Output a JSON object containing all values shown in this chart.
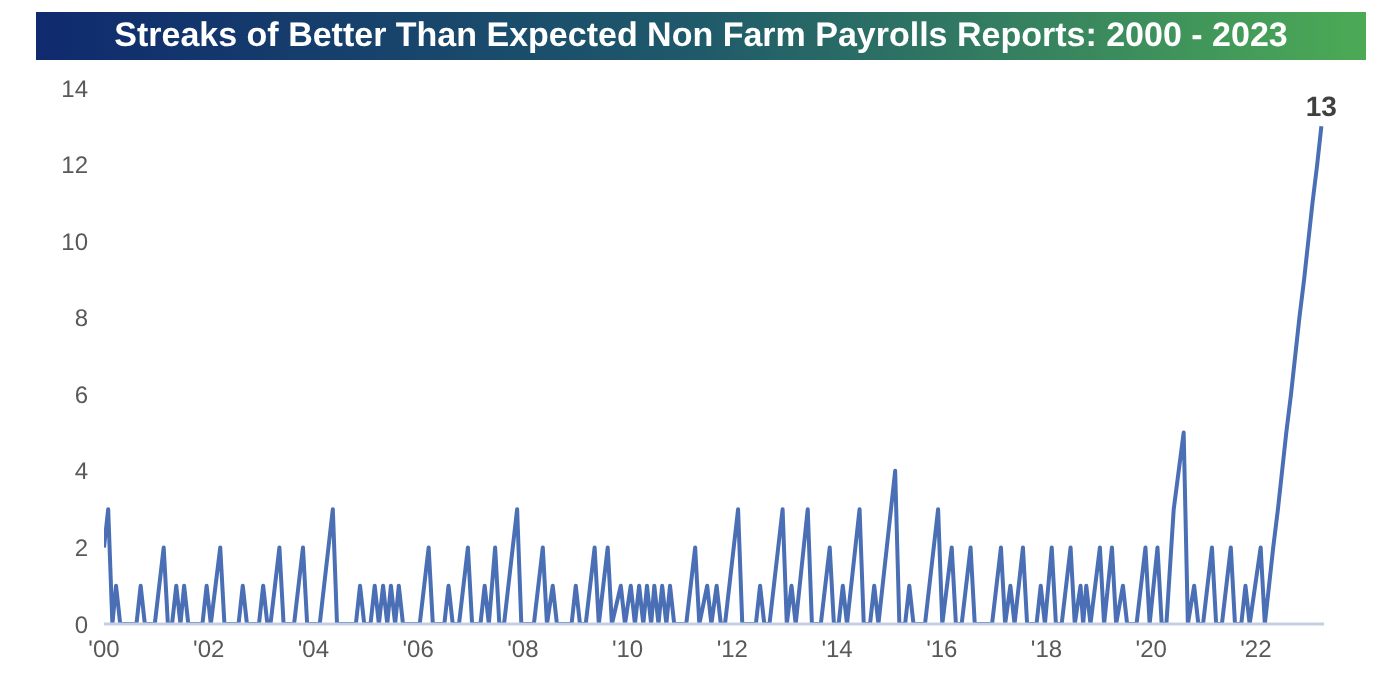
{
  "chart_data": {
    "type": "line",
    "title": "Streaks of Better Than Expected Non Farm Payrolls Reports: 2000 - 2023",
    "x": [
      2000.0,
      2000.08,
      2000.16,
      2000.23,
      2000.31,
      2000.62,
      2000.7,
      2000.78,
      2000.97,
      2001.14,
      2001.22,
      2001.3,
      2001.38,
      2001.46,
      2001.53,
      2001.61,
      2001.88,
      2001.96,
      2002.04,
      2002.22,
      2002.3,
      2002.57,
      2002.65,
      2002.73,
      2002.96,
      2003.04,
      2003.12,
      2003.18,
      2003.35,
      2003.43,
      2003.63,
      2003.8,
      2003.88,
      2004.12,
      2004.37,
      2004.45,
      2004.81,
      2004.89,
      2004.97,
      2005.09,
      2005.17,
      2005.25,
      2005.33,
      2005.41,
      2005.48,
      2005.56,
      2005.63,
      2005.71,
      2006.03,
      2006.2,
      2006.28,
      2006.5,
      2006.58,
      2006.66,
      2006.78,
      2006.95,
      2007.03,
      2007.19,
      2007.27,
      2007.35,
      2007.47,
      2007.55,
      2007.64,
      2007.89,
      2007.97,
      2008.21,
      2008.38,
      2008.46,
      2008.57,
      2008.65,
      2008.93,
      2009.01,
      2009.09,
      2009.2,
      2009.37,
      2009.45,
      2009.62,
      2009.7,
      2009.87,
      2009.95,
      2010.06,
      2010.14,
      2010.22,
      2010.3,
      2010.37,
      2010.45,
      2010.51,
      2010.59,
      2010.66,
      2010.74,
      2010.81,
      2010.89,
      2011.12,
      2011.29,
      2011.37,
      2011.52,
      2011.6,
      2011.7,
      2011.78,
      2011.86,
      2012.11,
      2012.19,
      2012.45,
      2012.53,
      2012.61,
      2012.71,
      2012.96,
      2013.04,
      2013.13,
      2013.21,
      2013.44,
      2013.52,
      2013.69,
      2013.86,
      2013.94,
      2014.03,
      2014.11,
      2014.19,
      2014.43,
      2014.51,
      2014.63,
      2014.71,
      2014.79,
      2015.11,
      2015.19,
      2015.3,
      2015.38,
      2015.46,
      2015.68,
      2015.93,
      2016.01,
      2016.19,
      2016.27,
      2016.38,
      2016.55,
      2016.63,
      2016.96,
      2017.13,
      2017.21,
      2017.31,
      2017.39,
      2017.55,
      2017.63,
      2017.81,
      2017.89,
      2017.97,
      2018.1,
      2018.18,
      2018.29,
      2018.46,
      2018.54,
      2018.65,
      2018.7,
      2018.76,
      2018.84,
      2019.02,
      2019.1,
      2019.25,
      2019.33,
      2019.46,
      2019.54,
      2019.72,
      2019.89,
      2019.97,
      2020.12,
      2020.2,
      2020.29,
      2020.43,
      2020.62,
      2020.7,
      2020.82,
      2020.9,
      2020.99,
      2021.16,
      2021.24,
      2021.35,
      2021.52,
      2021.6,
      2021.72,
      2021.8,
      2021.88,
      2022.09,
      2022.17,
      2022.25,
      2022.33,
      2022.42,
      2022.5,
      2022.58,
      2022.67,
      2022.75,
      2022.83,
      2022.92,
      2023.0,
      2023.08,
      2023.17,
      2023.25
    ],
    "series": [
      {
        "color": "#4a6fb5",
        "values": [
          2,
          3,
          0,
          1,
          0,
          0,
          1,
          0,
          0,
          2,
          0,
          0,
          1,
          0,
          1,
          0,
          0,
          1,
          0,
          2,
          0,
          0,
          1,
          0,
          0,
          1,
          0,
          0,
          2,
          0,
          0,
          2,
          0,
          0,
          3,
          0,
          0,
          1,
          0,
          0,
          1,
          0,
          1,
          0,
          1,
          0,
          1,
          0,
          0,
          2,
          0,
          0,
          1,
          0,
          0,
          2,
          0,
          0,
          1,
          0,
          2,
          0,
          0,
          3,
          0,
          0,
          2,
          0,
          1,
          0,
          0,
          1,
          0,
          0,
          2,
          0,
          2,
          0,
          1,
          0,
          1,
          0,
          1,
          0,
          1,
          0,
          1,
          0,
          1,
          0,
          1,
          0,
          0,
          2,
          0,
          1,
          0,
          1,
          0,
          0,
          3,
          0,
          0,
          1,
          0,
          0,
          3,
          0,
          1,
          0,
          3,
          0,
          0,
          2,
          0,
          0,
          1,
          0,
          3,
          0,
          0,
          1,
          0,
          4,
          0,
          0,
          1,
          0,
          0,
          3,
          0,
          2,
          0,
          0,
          2,
          0,
          0,
          2,
          0,
          1,
          0,
          2,
          0,
          0,
          1,
          0,
          2,
          0,
          0,
          2,
          0,
          1,
          0,
          1,
          0,
          2,
          0,
          2,
          0,
          1,
          0,
          0,
          2,
          0,
          2,
          0,
          0,
          3,
          5,
          0,
          1,
          0,
          0,
          2,
          0,
          0,
          2,
          0,
          0,
          1,
          0,
          2,
          0,
          1,
          2,
          3,
          4,
          5,
          6,
          7,
          8,
          9,
          10,
          11,
          12,
          13
        ]
      }
    ],
    "xlim": [
      2000,
      2023.3
    ],
    "xticks": [
      {
        "value": 2000,
        "label": "'00"
      },
      {
        "value": 2002,
        "label": "'02"
      },
      {
        "value": 2004,
        "label": "'04"
      },
      {
        "value": 2006,
        "label": "'06"
      },
      {
        "value": 2008,
        "label": "'08"
      },
      {
        "value": 2010,
        "label": "'10"
      },
      {
        "value": 2012,
        "label": "'12"
      },
      {
        "value": 2014,
        "label": "'14"
      },
      {
        "value": 2016,
        "label": "'16"
      },
      {
        "value": 2018,
        "label": "'18"
      },
      {
        "value": 2020,
        "label": "'20"
      },
      {
        "value": 2022,
        "label": "'22"
      }
    ],
    "ylim": [
      0,
      14
    ],
    "yticks": [
      0,
      2,
      4,
      6,
      8,
      10,
      12,
      14
    ],
    "annotations": [
      {
        "text": "13",
        "x": 2023.25,
        "y": 13
      }
    ],
    "grid": false,
    "legend": false,
    "marker": "none",
    "line_style": "solid"
  }
}
